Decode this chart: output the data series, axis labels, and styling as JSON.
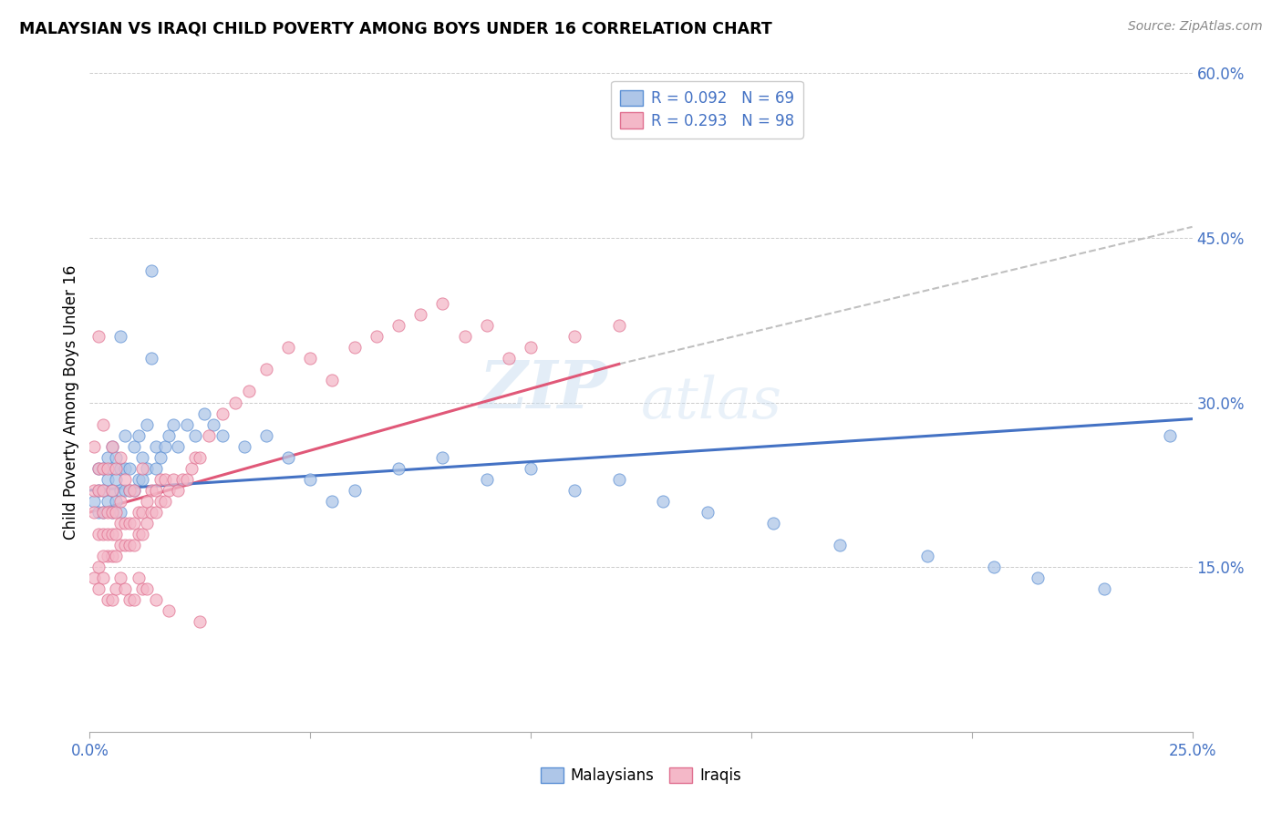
{
  "title": "MALAYSIAN VS IRAQI CHILD POVERTY AMONG BOYS UNDER 16 CORRELATION CHART",
  "source": "Source: ZipAtlas.com",
  "ylabel": "Child Poverty Among Boys Under 16",
  "xlim": [
    0.0,
    0.25
  ],
  "ylim": [
    0.0,
    0.6
  ],
  "yticks": [
    0.0,
    0.15,
    0.3,
    0.45,
    0.6
  ],
  "ytick_labels": [
    "",
    "15.0%",
    "30.0%",
    "45.0%",
    "60.0%"
  ],
  "malaysian_color": "#aec6e8",
  "iraqi_color": "#f4b8c8",
  "malaysian_edge_color": "#5b8fd4",
  "iraqi_edge_color": "#e07090",
  "malaysian_line_color": "#4472c4",
  "iraqi_line_color": "#e05878",
  "dashed_line_color": "#c0c0c0",
  "tick_color": "#4472c4",
  "R_malaysian": 0.092,
  "N_malaysian": 69,
  "R_iraqi": 0.293,
  "N_iraqi": 98,
  "watermark_zip": "ZIP",
  "watermark_atlas": "atlas",
  "background_color": "#ffffff",
  "malaysian_x": [
    0.001,
    0.002,
    0.002,
    0.002,
    0.003,
    0.003,
    0.003,
    0.004,
    0.004,
    0.004,
    0.005,
    0.005,
    0.005,
    0.005,
    0.006,
    0.006,
    0.006,
    0.007,
    0.007,
    0.007,
    0.007,
    0.008,
    0.008,
    0.008,
    0.009,
    0.009,
    0.01,
    0.01,
    0.011,
    0.011,
    0.012,
    0.012,
    0.013,
    0.013,
    0.014,
    0.014,
    0.015,
    0.015,
    0.016,
    0.017,
    0.018,
    0.019,
    0.02,
    0.022,
    0.024,
    0.026,
    0.028,
    0.03,
    0.035,
    0.04,
    0.045,
    0.05,
    0.055,
    0.06,
    0.07,
    0.08,
    0.09,
    0.1,
    0.11,
    0.12,
    0.13,
    0.14,
    0.155,
    0.17,
    0.19,
    0.205,
    0.215,
    0.23,
    0.245
  ],
  "malaysian_y": [
    0.21,
    0.2,
    0.22,
    0.24,
    0.2,
    0.22,
    0.24,
    0.21,
    0.23,
    0.25,
    0.2,
    0.22,
    0.24,
    0.26,
    0.21,
    0.23,
    0.25,
    0.2,
    0.22,
    0.24,
    0.36,
    0.22,
    0.24,
    0.27,
    0.22,
    0.24,
    0.22,
    0.26,
    0.23,
    0.27,
    0.23,
    0.25,
    0.24,
    0.28,
    0.34,
    0.42,
    0.24,
    0.26,
    0.25,
    0.26,
    0.27,
    0.28,
    0.26,
    0.28,
    0.27,
    0.29,
    0.28,
    0.27,
    0.26,
    0.27,
    0.25,
    0.23,
    0.21,
    0.22,
    0.24,
    0.25,
    0.23,
    0.24,
    0.22,
    0.23,
    0.21,
    0.2,
    0.19,
    0.17,
    0.16,
    0.15,
    0.14,
    0.13,
    0.27
  ],
  "iraqi_x": [
    0.001,
    0.001,
    0.001,
    0.002,
    0.002,
    0.002,
    0.002,
    0.003,
    0.003,
    0.003,
    0.003,
    0.003,
    0.004,
    0.004,
    0.004,
    0.004,
    0.005,
    0.005,
    0.005,
    0.005,
    0.005,
    0.006,
    0.006,
    0.006,
    0.006,
    0.007,
    0.007,
    0.007,
    0.007,
    0.008,
    0.008,
    0.008,
    0.009,
    0.009,
    0.009,
    0.01,
    0.01,
    0.01,
    0.011,
    0.011,
    0.012,
    0.012,
    0.012,
    0.013,
    0.013,
    0.014,
    0.014,
    0.015,
    0.015,
    0.016,
    0.016,
    0.017,
    0.017,
    0.018,
    0.019,
    0.02,
    0.021,
    0.022,
    0.023,
    0.024,
    0.025,
    0.027,
    0.03,
    0.033,
    0.036,
    0.04,
    0.045,
    0.05,
    0.055,
    0.06,
    0.065,
    0.07,
    0.075,
    0.08,
    0.085,
    0.09,
    0.095,
    0.1,
    0.11,
    0.12,
    0.001,
    0.002,
    0.002,
    0.003,
    0.003,
    0.004,
    0.005,
    0.006,
    0.007,
    0.008,
    0.009,
    0.01,
    0.011,
    0.012,
    0.013,
    0.015,
    0.018,
    0.025
  ],
  "iraqi_y": [
    0.2,
    0.22,
    0.26,
    0.18,
    0.22,
    0.24,
    0.36,
    0.18,
    0.2,
    0.22,
    0.24,
    0.28,
    0.16,
    0.18,
    0.2,
    0.24,
    0.16,
    0.18,
    0.2,
    0.22,
    0.26,
    0.16,
    0.18,
    0.2,
    0.24,
    0.17,
    0.19,
    0.21,
    0.25,
    0.17,
    0.19,
    0.23,
    0.17,
    0.19,
    0.22,
    0.17,
    0.19,
    0.22,
    0.18,
    0.2,
    0.18,
    0.2,
    0.24,
    0.19,
    0.21,
    0.2,
    0.22,
    0.2,
    0.22,
    0.21,
    0.23,
    0.21,
    0.23,
    0.22,
    0.23,
    0.22,
    0.23,
    0.23,
    0.24,
    0.25,
    0.25,
    0.27,
    0.29,
    0.3,
    0.31,
    0.33,
    0.35,
    0.34,
    0.32,
    0.35,
    0.36,
    0.37,
    0.38,
    0.39,
    0.36,
    0.37,
    0.34,
    0.35,
    0.36,
    0.37,
    0.14,
    0.13,
    0.15,
    0.14,
    0.16,
    0.12,
    0.12,
    0.13,
    0.14,
    0.13,
    0.12,
    0.12,
    0.14,
    0.13,
    0.13,
    0.12,
    0.11,
    0.1
  ]
}
